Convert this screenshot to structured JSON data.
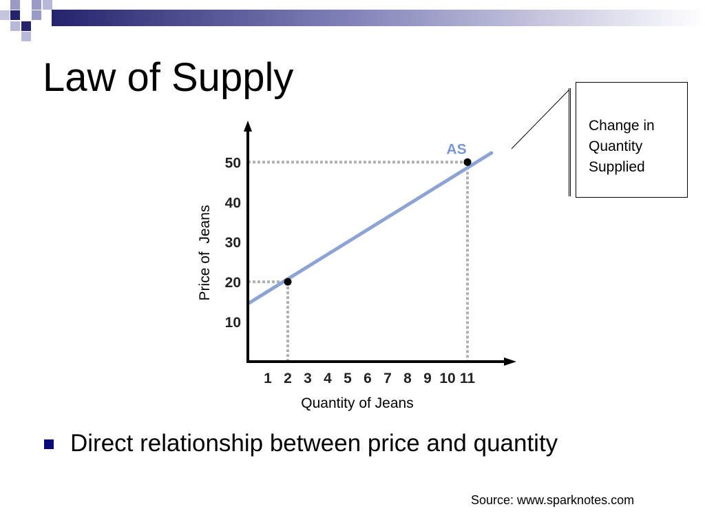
{
  "slide": {
    "title": "Law of Supply",
    "bullets": [
      "Direct relationship between price and quantity"
    ],
    "source": "Source: www.sparknotes.com"
  },
  "callout": {
    "line1": "Change in",
    "line2": "Quantity",
    "line3": "Supplied"
  },
  "colors": {
    "supply_line": "#8ca3d4",
    "supply_label": "#7a96d0",
    "guides": "#b0b0b0",
    "axes": "#000000",
    "bullet": "#0a0a7a",
    "corner_dark": "#24246e",
    "corner_light": "#9a9ac6"
  },
  "chart_data": {
    "type": "line",
    "xlabel": "Quantity of Jeans",
    "ylabel": "Price of  Jeans",
    "x_ticks": [
      1,
      2,
      3,
      4,
      5,
      6,
      7,
      8,
      9,
      10,
      11
    ],
    "y_ticks": [
      10,
      20,
      30,
      40,
      50
    ],
    "xlim": [
      0,
      13
    ],
    "ylim": [
      0,
      58
    ],
    "grid": false,
    "series": [
      {
        "name": "AS",
        "line": [
          [
            0,
            14.5
          ],
          [
            12.2,
            52.3
          ]
        ],
        "points": [
          [
            2,
            20
          ],
          [
            11,
            50
          ]
        ]
      }
    ],
    "guides": [
      {
        "x": 2,
        "y": 20
      },
      {
        "x": 11,
        "y": 50
      }
    ]
  }
}
